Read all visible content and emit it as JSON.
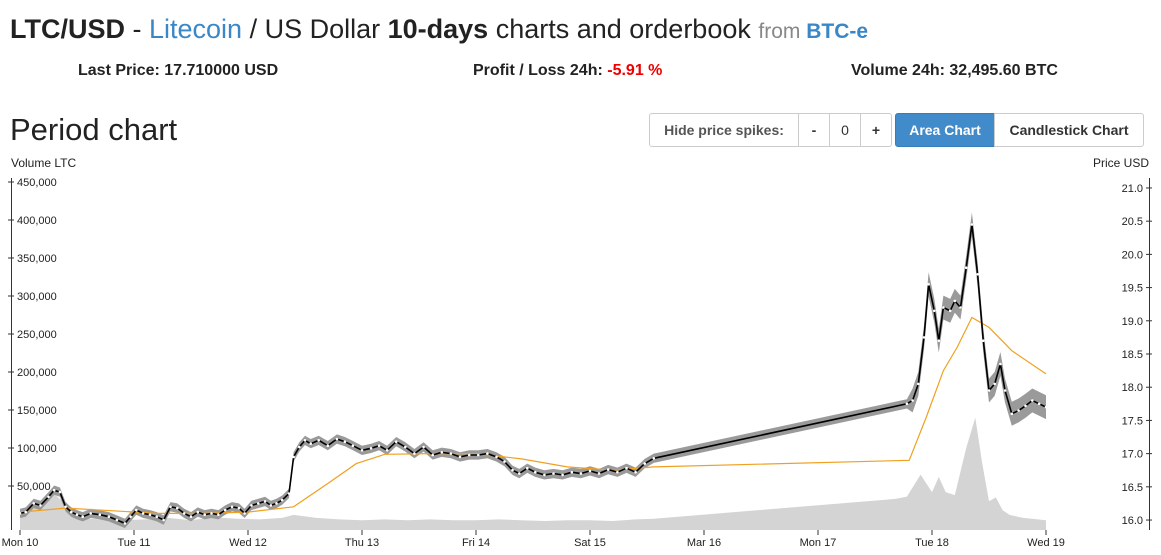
{
  "header": {
    "pair": "LTC/USD",
    "sep": " - ",
    "coin": "Litecoin",
    "slash": " / US Dollar ",
    "period": "10-days",
    "rest": " charts and orderbook ",
    "from": "from ",
    "exchange": "BTC-e"
  },
  "stats": {
    "last_price_label": "Last Price: ",
    "last_price": "17.710000 USD",
    "profit_label": "Profit / Loss 24h: ",
    "profit": "-5.91 %",
    "volume_label": "Volume 24h: ",
    "volume": "32,495.60 BTC"
  },
  "section_title": "Period chart",
  "toolbar": {
    "spikes_label": "Hide price spikes:",
    "minus": "-",
    "spike_value": "0",
    "plus": "+",
    "area_chart": "Area Chart",
    "candlestick_chart": "Candlestick Chart"
  },
  "colors": {
    "accent": "#428bca",
    "negative": "#e00000",
    "band": "#8f8f8f",
    "volume_area": "#d4d4d4",
    "moving_avg": "#f0a020",
    "price_line": "#000000"
  },
  "chart_data": {
    "type": "line",
    "left_axis_title": "Volume LTC",
    "right_axis_title": "Price USD",
    "left_ticks": [
      "50,000",
      "100,000",
      "150,000",
      "200,000",
      "250,000",
      "300,000",
      "350,000",
      "400,000",
      "450,000"
    ],
    "left_tick_values": [
      50000,
      100000,
      150000,
      200000,
      250000,
      300000,
      350000,
      400000,
      450000
    ],
    "right_ticks": [
      "16.0",
      "16.5",
      "17.0",
      "17.5",
      "18.0",
      "18.5",
      "19.0",
      "19.5",
      "20.0",
      "20.5",
      "21.0"
    ],
    "right_tick_values": [
      16.0,
      16.5,
      17.0,
      17.5,
      18.0,
      18.5,
      19.0,
      19.5,
      20.0,
      20.5,
      21.0
    ],
    "x_labels": [
      "Mon 10",
      "Tue 11",
      "Wed 12",
      "Thu 13",
      "Fri 14",
      "Sat 15",
      "Mar 16",
      "Mon 17",
      "Tue 18",
      "Wed 19"
    ],
    "x_range_days": [
      0,
      9.85
    ],
    "y_price_range": [
      15.85,
      21.15
    ],
    "y_volume_range": [
      0,
      460000
    ],
    "price": [
      [
        0.0,
        16.1
      ],
      [
        0.05,
        16.12
      ],
      [
        0.12,
        16.25
      ],
      [
        0.18,
        16.22
      ],
      [
        0.25,
        16.35
      ],
      [
        0.3,
        16.45
      ],
      [
        0.35,
        16.42
      ],
      [
        0.4,
        16.2
      ],
      [
        0.45,
        16.12
      ],
      [
        0.5,
        16.08
      ],
      [
        0.55,
        16.05
      ],
      [
        0.62,
        16.1
      ],
      [
        0.7,
        16.08
      ],
      [
        0.78,
        16.05
      ],
      [
        0.85,
        16.0
      ],
      [
        0.92,
        15.95
      ],
      [
        0.97,
        16.05
      ],
      [
        1.02,
        16.15
      ],
      [
        1.08,
        16.1
      ],
      [
        1.14,
        16.08
      ],
      [
        1.2,
        16.05
      ],
      [
        1.26,
        16.0
      ],
      [
        1.32,
        16.2
      ],
      [
        1.38,
        16.18
      ],
      [
        1.44,
        16.1
      ],
      [
        1.5,
        16.05
      ],
      [
        1.56,
        16.12
      ],
      [
        1.62,
        16.08
      ],
      [
        1.68,
        16.1
      ],
      [
        1.74,
        16.08
      ],
      [
        1.8,
        16.15
      ],
      [
        1.86,
        16.2
      ],
      [
        1.92,
        16.18
      ],
      [
        1.97,
        16.1
      ],
      [
        2.03,
        16.22
      ],
      [
        2.09,
        16.25
      ],
      [
        2.15,
        16.28
      ],
      [
        2.2,
        16.22
      ],
      [
        2.25,
        16.25
      ],
      [
        2.3,
        16.3
      ],
      [
        2.36,
        16.4
      ],
      [
        2.4,
        16.95
      ],
      [
        2.45,
        17.1
      ],
      [
        2.5,
        17.2
      ],
      [
        2.55,
        17.15
      ],
      [
        2.62,
        17.2
      ],
      [
        2.7,
        17.12
      ],
      [
        2.78,
        17.22
      ],
      [
        2.85,
        17.18
      ],
      [
        2.92,
        17.12
      ],
      [
        3.0,
        17.05
      ],
      [
        3.08,
        17.08
      ],
      [
        3.15,
        17.12
      ],
      [
        3.22,
        17.05
      ],
      [
        3.3,
        17.18
      ],
      [
        3.38,
        17.1
      ],
      [
        3.46,
        17.0
      ],
      [
        3.54,
        17.1
      ],
      [
        3.62,
        16.98
      ],
      [
        3.7,
        17.02
      ],
      [
        3.78,
        17.0
      ],
      [
        3.86,
        16.95
      ],
      [
        3.94,
        16.98
      ],
      [
        4.02,
        16.98
      ],
      [
        4.1,
        17.0
      ],
      [
        4.18,
        16.95
      ],
      [
        4.25,
        16.88
      ],
      [
        4.32,
        16.75
      ],
      [
        4.38,
        16.7
      ],
      [
        4.45,
        16.78
      ],
      [
        4.52,
        16.72
      ],
      [
        4.6,
        16.68
      ],
      [
        4.68,
        16.7
      ],
      [
        4.76,
        16.68
      ],
      [
        4.84,
        16.72
      ],
      [
        4.92,
        16.7
      ],
      [
        5.0,
        16.74
      ],
      [
        5.08,
        16.7
      ],
      [
        5.16,
        16.76
      ],
      [
        5.24,
        16.72
      ],
      [
        5.32,
        16.78
      ],
      [
        5.4,
        16.72
      ],
      [
        5.48,
        16.85
      ],
      [
        5.56,
        16.93
      ],
      [
        7.78,
        17.75
      ],
      [
        7.83,
        17.8
      ],
      [
        7.88,
        18.05
      ],
      [
        7.93,
        18.75
      ],
      [
        7.97,
        19.55
      ],
      [
        8.02,
        19.15
      ],
      [
        8.06,
        18.7
      ],
      [
        8.1,
        19.2
      ],
      [
        8.16,
        19.15
      ],
      [
        8.2,
        19.3
      ],
      [
        8.25,
        19.2
      ],
      [
        8.3,
        19.8
      ],
      [
        8.35,
        20.45
      ],
      [
        8.4,
        19.7
      ],
      [
        8.45,
        18.7
      ],
      [
        8.5,
        17.95
      ],
      [
        8.55,
        18.05
      ],
      [
        8.6,
        18.35
      ],
      [
        8.64,
        17.95
      ],
      [
        8.7,
        17.6
      ],
      [
        8.76,
        17.65
      ],
      [
        8.82,
        17.72
      ],
      [
        8.88,
        17.8
      ],
      [
        8.94,
        17.75
      ],
      [
        9.0,
        17.7
      ]
    ],
    "volume": [
      [
        0.0,
        12000
      ],
      [
        0.1,
        22000
      ],
      [
        0.2,
        30000
      ],
      [
        0.3,
        40000
      ],
      [
        0.4,
        26000
      ],
      [
        0.5,
        8000
      ],
      [
        0.7,
        6000
      ],
      [
        0.9,
        5000
      ],
      [
        1.1,
        6000
      ],
      [
        1.3,
        8000
      ],
      [
        1.5,
        5000
      ],
      [
        1.7,
        9000
      ],
      [
        1.9,
        7000
      ],
      [
        2.1,
        6000
      ],
      [
        2.3,
        8000
      ],
      [
        2.4,
        12000
      ],
      [
        2.6,
        8000
      ],
      [
        2.8,
        6000
      ],
      [
        3.0,
        5000
      ],
      [
        3.2,
        6000
      ],
      [
        3.4,
        5000
      ],
      [
        3.6,
        6000
      ],
      [
        3.8,
        5000
      ],
      [
        4.0,
        5000
      ],
      [
        4.2,
        6000
      ],
      [
        4.4,
        5000
      ],
      [
        4.6,
        4000
      ],
      [
        4.8,
        5000
      ],
      [
        5.0,
        5000
      ],
      [
        5.2,
        4000
      ],
      [
        5.4,
        6000
      ],
      [
        5.56,
        7000
      ],
      [
        7.68,
        33000
      ],
      [
        7.78,
        36000
      ],
      [
        7.9,
        65000
      ],
      [
        8.0,
        42000
      ],
      [
        8.06,
        62000
      ],
      [
        8.12,
        42000
      ],
      [
        8.2,
        38000
      ],
      [
        8.3,
        100000
      ],
      [
        8.38,
        140000
      ],
      [
        8.44,
        80000
      ],
      [
        8.5,
        30000
      ],
      [
        8.56,
        35000
      ],
      [
        8.62,
        18000
      ],
      [
        8.68,
        12000
      ],
      [
        8.8,
        8000
      ],
      [
        9.0,
        5000
      ]
    ],
    "moving_average": [
      [
        0.0,
        16.12
      ],
      [
        0.4,
        16.18
      ],
      [
        0.8,
        16.14
      ],
      [
        1.2,
        16.1
      ],
      [
        1.6,
        16.1
      ],
      [
        2.0,
        16.12
      ],
      [
        2.4,
        16.2
      ],
      [
        2.7,
        16.55
      ],
      [
        2.95,
        16.85
      ],
      [
        3.2,
        16.99
      ],
      [
        3.6,
        17.0
      ],
      [
        4.0,
        17.0
      ],
      [
        4.4,
        16.92
      ],
      [
        4.8,
        16.8
      ],
      [
        5.2,
        16.75
      ],
      [
        5.56,
        16.8
      ],
      [
        7.8,
        16.9
      ],
      [
        7.95,
        17.55
      ],
      [
        8.1,
        18.25
      ],
      [
        8.22,
        18.6
      ],
      [
        8.35,
        19.05
      ],
      [
        8.5,
        18.9
      ],
      [
        8.7,
        18.55
      ],
      [
        9.0,
        18.2
      ]
    ]
  }
}
